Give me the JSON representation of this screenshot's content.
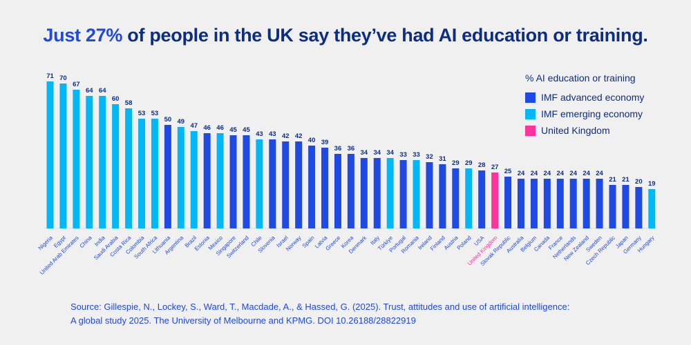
{
  "title": {
    "highlight": "Just 27%",
    "rest": " of people in the UK say they’ve had AI education or training."
  },
  "legend": {
    "title": "% AI education or training",
    "items": [
      {
        "key": "advanced",
        "label": "IMF advanced economy",
        "color": "#1e49e2"
      },
      {
        "key": "emerging",
        "label": "IMF emerging economy",
        "color": "#00b8f5"
      },
      {
        "key": "uk",
        "label": "United Kingdom",
        "color": "#fd349c"
      }
    ]
  },
  "source": {
    "line1": "Source: Gillespie, N., Lockey, S., Ward, T., Macdade, A., & Hassed, G. (2025). Trust, attitudes and use of artificial intelligence:",
    "line2": "A global study 2025. The University of Melbourne and KPMG. DOI 10.26188/28822919"
  },
  "colors": {
    "label_text": "#0c2d83",
    "axis_label": "#1e49e2",
    "uk_label": "#fd349c",
    "baseline": "#dcdcdc"
  },
  "chart_data": {
    "type": "bar",
    "title": "Just 27% of people in the UK say they’ve had AI education or training.",
    "xlabel": "",
    "ylabel": "% AI education or training",
    "ylim": [
      0,
      75
    ],
    "grid": false,
    "legend_position": "top-right",
    "categories": [
      "Nigeria",
      "Egypt",
      "United Arab Emirates",
      "China",
      "India",
      "Saudi Arabia",
      "Costa Rica",
      "Colombia",
      "South Africa",
      "Lithuania",
      "Argentina",
      "Brazil",
      "Estonia",
      "Mexico",
      "Singapore",
      "Switzerland",
      "Chile",
      "Slovenia",
      "Israel",
      "Norway",
      "Spain",
      "Latvia",
      "Greece",
      "Korea",
      "Denmark",
      "Italy",
      "Türkiye",
      "Portugal",
      "Romania",
      "Ireland",
      "Finland",
      "Austria",
      "Poland",
      "USA",
      "United Kingdom",
      "Slovak Republic",
      "Australia",
      "Belgium",
      "Canada",
      "France",
      "Netherlands",
      "New Zealand",
      "Sweden",
      "Czech Republic",
      "Japan",
      "Germany",
      "Hungary"
    ],
    "values": [
      71,
      70,
      67,
      64,
      64,
      60,
      58,
      53,
      53,
      50,
      49,
      47,
      46,
      46,
      45,
      45,
      43,
      43,
      42,
      42,
      40,
      39,
      36,
      36,
      34,
      34,
      34,
      33,
      33,
      32,
      31,
      29,
      29,
      28,
      27,
      25,
      24,
      24,
      24,
      24,
      24,
      24,
      24,
      21,
      21,
      20,
      19
    ],
    "groups": [
      "emerging",
      "emerging",
      "emerging",
      "emerging",
      "emerging",
      "emerging",
      "emerging",
      "emerging",
      "emerging",
      "advanced",
      "emerging",
      "emerging",
      "advanced",
      "emerging",
      "advanced",
      "advanced",
      "emerging",
      "advanced",
      "advanced",
      "advanced",
      "advanced",
      "advanced",
      "advanced",
      "advanced",
      "advanced",
      "advanced",
      "emerging",
      "advanced",
      "emerging",
      "advanced",
      "advanced",
      "advanced",
      "emerging",
      "advanced",
      "uk",
      "advanced",
      "advanced",
      "advanced",
      "advanced",
      "advanced",
      "advanced",
      "advanced",
      "advanced",
      "advanced",
      "advanced",
      "advanced",
      "emerging"
    ]
  }
}
